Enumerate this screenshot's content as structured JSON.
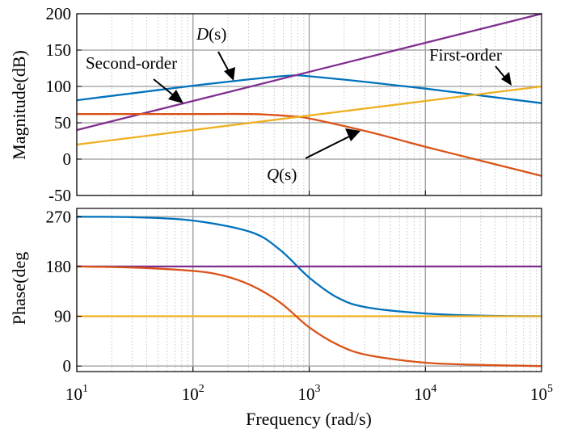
{
  "chart_data": [
    {
      "type": "line",
      "panel": "magnitude",
      "ylabel": "Magnitude(dB)",
      "xscale": "log",
      "xlim": [
        10,
        100000
      ],
      "ylim": [
        -50,
        200
      ],
      "yticks": [
        "200",
        "150",
        "100",
        "50",
        "0",
        "-50"
      ],
      "grid": true,
      "series": [
        {
          "color": "#0072BD",
          "x": [
            10,
            31.6,
            100,
            316,
            700,
            1000,
            3162,
            10000,
            31623,
            100000
          ],
          "y": [
            81,
            91,
            101,
            110,
            115,
            114,
            106,
            97,
            87,
            77
          ]
        },
        {
          "color": "#7E2F8E",
          "x": [
            10,
            100000
          ],
          "y": [
            40,
            200
          ]
        },
        {
          "color": "#D95319",
          "x": [
            10,
            100,
            316,
            700,
            1000,
            3162,
            10000,
            31623,
            100000
          ],
          "y": [
            62,
            62,
            62,
            59,
            56,
            38,
            17,
            -3,
            -23
          ]
        },
        {
          "color": "#EDB120",
          "x": [
            10,
            100000
          ],
          "y": [
            20,
            100
          ]
        }
      ],
      "annotations": [
        {
          "text": "Second-order",
          "points_to": "second-order curve"
        },
        {
          "text": "D",
          "suffix": "(s)",
          "points_to": "D(s) curve"
        },
        {
          "text": "First-order",
          "points_to": "first-order curve"
        },
        {
          "text": "Q",
          "suffix": "(s)",
          "points_to": "Q(s) curve"
        }
      ]
    },
    {
      "type": "line",
      "panel": "phase",
      "xlabel": "Frequency (rad/s)",
      "ylabel": "Phase(deg",
      "xscale": "log",
      "xlim": [
        10,
        100000
      ],
      "ylim": [
        -10,
        285
      ],
      "yticks": [
        "270",
        "180",
        "90",
        "0"
      ],
      "xticks": [
        {
          "base": "10",
          "exp": "1"
        },
        {
          "base": "10",
          "exp": "2"
        },
        {
          "base": "10",
          "exp": "3"
        },
        {
          "base": "10",
          "exp": "4"
        },
        {
          "base": "10",
          "exp": "5"
        }
      ],
      "grid": true,
      "series": [
        {
          "color": "#0072BD",
          "x": [
            10,
            31.6,
            100,
            316,
            562,
            1000,
            1778,
            3162,
            10000,
            31623,
            100000
          ],
          "y": [
            270,
            269,
            263,
            242,
            210,
            160,
            123,
            106,
            95,
            91,
            90
          ]
        },
        {
          "color": "#7E2F8E",
          "x": [
            10,
            100000
          ],
          "y": [
            180,
            180
          ]
        },
        {
          "color": "#EDB120",
          "x": [
            10,
            100000
          ],
          "y": [
            90,
            90
          ]
        },
        {
          "color": "#D95319",
          "x": [
            10,
            31.6,
            100,
            178,
            316,
            562,
            1000,
            1778,
            3162,
            10000,
            31623,
            100000
          ],
          "y": [
            180,
            178,
            172,
            164,
            146,
            115,
            70,
            38,
            20,
            6,
            2,
            0
          ]
        }
      ]
    }
  ]
}
